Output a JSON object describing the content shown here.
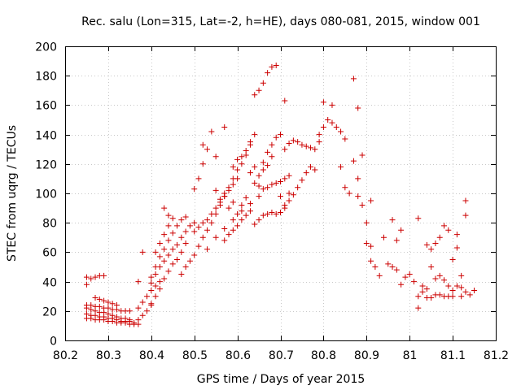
{
  "chart_data": {
    "type": "scatter",
    "title": "Rec. salu (Lon=315, Lat=-2, h=HE), days 080-081, 2015, window 001",
    "xlabel": "GPS time / Days of year 2015",
    "ylabel": "STEC from uqrg / TECUs",
    "xlim": [
      80.2,
      81.2
    ],
    "ylim": [
      0,
      200
    ],
    "x_ticks": [
      "80.2",
      "80.3",
      "80.4",
      "80.5",
      "80.6",
      "80.7",
      "80.8",
      "80.9",
      "81",
      "81.1",
      "81.2"
    ],
    "y_ticks": [
      "0",
      "20",
      "40",
      "60",
      "80",
      "100",
      "120",
      "140",
      "160",
      "180",
      "200"
    ],
    "grid": true,
    "marker": "plus",
    "color": "#cc0000",
    "points": [
      [
        80.25,
        43
      ],
      [
        80.26,
        42
      ],
      [
        80.27,
        43
      ],
      [
        80.28,
        44
      ],
      [
        80.29,
        44
      ],
      [
        80.25,
        38
      ],
      [
        80.25,
        24
      ],
      [
        80.26,
        24
      ],
      [
        80.27,
        23
      ],
      [
        80.28,
        23
      ],
      [
        80.29,
        22
      ],
      [
        80.3,
        22
      ],
      [
        80.31,
        21
      ],
      [
        80.32,
        21
      ],
      [
        80.33,
        20
      ],
      [
        80.34,
        20
      ],
      [
        80.35,
        20
      ],
      [
        80.25,
        22
      ],
      [
        80.26,
        21
      ],
      [
        80.27,
        20
      ],
      [
        80.28,
        19
      ],
      [
        80.29,
        19
      ],
      [
        80.3,
        18
      ],
      [
        80.31,
        17
      ],
      [
        80.32,
        16
      ],
      [
        80.33,
        15
      ],
      [
        80.34,
        15
      ],
      [
        80.35,
        14
      ],
      [
        80.25,
        18
      ],
      [
        80.26,
        17
      ],
      [
        80.27,
        17
      ],
      [
        80.28,
        16
      ],
      [
        80.29,
        16
      ],
      [
        80.3,
        15
      ],
      [
        80.31,
        15
      ],
      [
        80.32,
        14
      ],
      [
        80.33,
        13
      ],
      [
        80.34,
        13
      ],
      [
        80.35,
        13
      ],
      [
        80.25,
        15
      ],
      [
        80.26,
        15
      ],
      [
        80.27,
        14
      ],
      [
        80.28,
        14
      ],
      [
        80.29,
        14
      ],
      [
        80.3,
        13
      ],
      [
        80.31,
        13
      ],
      [
        80.32,
        12
      ],
      [
        80.33,
        12
      ],
      [
        80.34,
        12
      ],
      [
        80.35,
        11
      ],
      [
        80.36,
        11
      ],
      [
        80.37,
        11
      ],
      [
        80.27,
        29
      ],
      [
        80.28,
        28
      ],
      [
        80.29,
        27
      ],
      [
        80.3,
        26
      ],
      [
        80.31,
        25
      ],
      [
        80.32,
        24
      ],
      [
        80.36,
        12
      ],
      [
        80.37,
        14
      ],
      [
        80.38,
        17
      ],
      [
        80.39,
        20
      ],
      [
        80.4,
        24
      ],
      [
        80.37,
        22
      ],
      [
        80.38,
        26
      ],
      [
        80.39,
        30
      ],
      [
        80.4,
        34
      ],
      [
        80.41,
        37
      ],
      [
        80.42,
        40
      ],
      [
        80.37,
        40
      ],
      [
        80.38,
        60
      ],
      [
        80.4,
        39
      ],
      [
        80.41,
        45
      ],
      [
        80.42,
        50
      ],
      [
        80.43,
        54
      ],
      [
        80.44,
        58
      ],
      [
        80.45,
        62
      ],
      [
        80.46,
        65
      ],
      [
        80.47,
        70
      ],
      [
        80.48,
        74
      ],
      [
        80.49,
        78
      ],
      [
        80.5,
        80
      ],
      [
        80.4,
        43
      ],
      [
        80.41,
        50
      ],
      [
        80.42,
        57
      ],
      [
        80.43,
        62
      ],
      [
        80.44,
        68
      ],
      [
        80.45,
        73
      ],
      [
        80.46,
        78
      ],
      [
        80.47,
        82
      ],
      [
        80.48,
        84
      ],
      [
        80.41,
        60
      ],
      [
        80.42,
        66
      ],
      [
        80.43,
        72
      ],
      [
        80.44,
        78
      ],
      [
        80.45,
        83
      ],
      [
        80.4,
        25
      ],
      [
        80.41,
        30
      ],
      [
        80.42,
        35
      ],
      [
        80.43,
        42
      ],
      [
        80.44,
        47
      ],
      [
        80.45,
        52
      ],
      [
        80.46,
        55
      ],
      [
        80.47,
        60
      ],
      [
        80.48,
        66
      ],
      [
        80.43,
        90
      ],
      [
        80.44,
        85
      ],
      [
        80.47,
        45
      ],
      [
        80.48,
        50
      ],
      [
        80.49,
        54
      ],
      [
        80.5,
        58
      ],
      [
        80.51,
        64
      ],
      [
        80.52,
        70
      ],
      [
        80.53,
        75
      ],
      [
        80.54,
        80
      ],
      [
        80.55,
        86
      ],
      [
        80.56,
        92
      ],
      [
        80.57,
        98
      ],
      [
        80.58,
        104
      ],
      [
        80.59,
        110
      ],
      [
        80.6,
        116
      ],
      [
        80.61,
        120
      ],
      [
        80.62,
        126
      ],
      [
        80.63,
        133
      ],
      [
        80.64,
        140
      ],
      [
        80.5,
        103
      ],
      [
        80.51,
        110
      ],
      [
        80.52,
        120
      ],
      [
        80.53,
        130
      ],
      [
        80.54,
        142
      ],
      [
        80.5,
        74
      ],
      [
        80.51,
        77
      ],
      [
        80.52,
        80
      ],
      [
        80.53,
        82
      ],
      [
        80.54,
        86
      ],
      [
        80.55,
        90
      ],
      [
        80.56,
        94
      ],
      [
        80.57,
        98
      ],
      [
        80.58,
        102
      ],
      [
        80.59,
        106
      ],
      [
        80.6,
        110
      ],
      [
        80.52,
        133
      ],
      [
        80.55,
        125
      ],
      [
        80.57,
        145
      ],
      [
        80.53,
        62
      ],
      [
        80.55,
        70
      ],
      [
        80.57,
        76
      ],
      [
        80.59,
        82
      ],
      [
        80.61,
        88
      ],
      [
        80.63,
        93
      ],
      [
        80.65,
        98
      ],
      [
        80.55,
        102
      ],
      [
        80.56,
        96
      ],
      [
        80.57,
        100
      ],
      [
        80.58,
        90
      ],
      [
        80.59,
        94
      ],
      [
        80.6,
        86
      ],
      [
        80.61,
        92
      ],
      [
        80.62,
        97
      ],
      [
        80.57,
        68
      ],
      [
        80.58,
        72
      ],
      [
        80.59,
        75
      ],
      [
        80.6,
        78
      ],
      [
        80.61,
        82
      ],
      [
        80.62,
        85
      ],
      [
        80.63,
        88
      ],
      [
        80.59,
        118
      ],
      [
        80.6,
        123
      ],
      [
        80.61,
        125
      ],
      [
        80.62,
        129
      ],
      [
        80.63,
        135
      ],
      [
        80.64,
        107
      ],
      [
        80.65,
        105
      ],
      [
        80.66,
        103
      ],
      [
        80.67,
        104
      ],
      [
        80.68,
        106
      ],
      [
        80.69,
        107
      ],
      [
        80.7,
        108
      ],
      [
        80.71,
        110
      ],
      [
        80.72,
        112
      ],
      [
        80.64,
        167
      ],
      [
        80.65,
        170
      ],
      [
        80.66,
        175
      ],
      [
        80.67,
        182
      ],
      [
        80.68,
        186
      ],
      [
        80.69,
        187
      ],
      [
        80.66,
        121
      ],
      [
        80.67,
        128
      ],
      [
        80.68,
        133
      ],
      [
        80.69,
        138
      ],
      [
        80.7,
        140
      ],
      [
        80.71,
        163
      ],
      [
        80.64,
        79
      ],
      [
        80.65,
        82
      ],
      [
        80.66,
        85
      ],
      [
        80.67,
        86
      ],
      [
        80.68,
        87
      ],
      [
        80.69,
        86
      ],
      [
        80.7,
        87
      ],
      [
        80.71,
        90
      ],
      [
        80.63,
        114
      ],
      [
        80.64,
        118
      ],
      [
        80.65,
        112
      ],
      [
        80.66,
        116
      ],
      [
        80.67,
        119
      ],
      [
        80.68,
        125
      ],
      [
        80.71,
        130
      ],
      [
        80.72,
        134
      ],
      [
        80.73,
        136
      ],
      [
        80.74,
        135
      ],
      [
        80.75,
        133
      ],
      [
        80.76,
        132
      ],
      [
        80.77,
        131
      ],
      [
        80.78,
        130
      ],
      [
        80.79,
        135
      ],
      [
        80.72,
        95
      ],
      [
        80.73,
        99
      ],
      [
        80.74,
        104
      ],
      [
        80.75,
        109
      ],
      [
        80.76,
        114
      ],
      [
        80.77,
        118
      ],
      [
        80.78,
        116
      ],
      [
        80.7,
        98
      ],
      [
        80.71,
        92
      ],
      [
        80.72,
        100
      ],
      [
        80.79,
        140
      ],
      [
        80.8,
        145
      ],
      [
        80.81,
        150
      ],
      [
        80.82,
        148
      ],
      [
        80.83,
        145
      ],
      [
        80.84,
        142
      ],
      [
        80.85,
        137
      ],
      [
        80.8,
        162
      ],
      [
        80.82,
        160
      ],
      [
        80.84,
        118
      ],
      [
        80.85,
        104
      ],
      [
        80.86,
        100
      ],
      [
        80.87,
        178
      ],
      [
        80.88,
        158
      ],
      [
        80.89,
        126
      ],
      [
        80.87,
        122
      ],
      [
        80.88,
        110
      ],
      [
        80.88,
        98
      ],
      [
        80.89,
        92
      ],
      [
        80.9,
        80
      ],
      [
        80.9,
        66
      ],
      [
        80.91,
        64
      ],
      [
        80.91,
        95
      ],
      [
        80.91,
        54
      ],
      [
        80.92,
        50
      ],
      [
        80.93,
        44
      ],
      [
        80.94,
        70
      ],
      [
        80.95,
        52
      ],
      [
        80.96,
        50
      ],
      [
        80.97,
        48
      ],
      [
        80.98,
        38
      ],
      [
        80.99,
        43
      ],
      [
        80.96,
        82
      ],
      [
        80.97,
        68
      ],
      [
        80.98,
        75
      ],
      [
        81.0,
        45
      ],
      [
        81.01,
        40
      ],
      [
        81.02,
        22
      ],
      [
        81.02,
        83
      ],
      [
        81.03,
        37
      ],
      [
        81.04,
        35
      ],
      [
        81.04,
        65
      ],
      [
        81.05,
        50
      ],
      [
        81.05,
        62
      ],
      [
        81.06,
        42
      ],
      [
        81.06,
        66
      ],
      [
        81.07,
        44
      ],
      [
        81.07,
        70
      ],
      [
        81.08,
        41
      ],
      [
        81.08,
        78
      ],
      [
        81.09,
        37
      ],
      [
        81.09,
        75
      ],
      [
        81.1,
        30
      ],
      [
        81.1,
        55
      ],
      [
        81.11,
        63
      ],
      [
        81.11,
        72
      ],
      [
        81.12,
        30
      ],
      [
        81.12,
        44
      ],
      [
        81.13,
        95
      ],
      [
        81.13,
        85
      ],
      [
        81.13,
        33
      ],
      [
        81.14,
        31
      ],
      [
        81.15,
        34
      ],
      [
        81.1,
        34
      ],
      [
        81.11,
        37
      ],
      [
        81.12,
        36
      ],
      [
        81.02,
        30
      ],
      [
        81.03,
        33
      ],
      [
        81.04,
        29
      ],
      [
        81.05,
        29
      ],
      [
        81.06,
        31
      ],
      [
        81.07,
        31
      ],
      [
        81.08,
        30
      ],
      [
        81.09,
        30
      ]
    ]
  }
}
